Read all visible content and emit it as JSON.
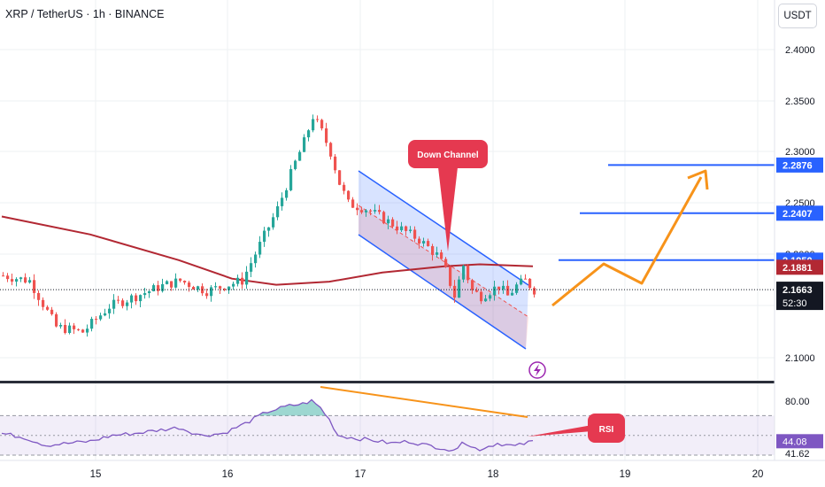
{
  "header": {
    "symbol_line": "XRP / TetherUS · 1h · BINANCE",
    "currency_button": "USDT"
  },
  "colors": {
    "up": "#26a69a",
    "down": "#ef5350",
    "ma": "#b22833",
    "channel": "#2962ff",
    "level": "#2962ff",
    "arrow": "#f7931a",
    "rsi": "#7e57c2",
    "callout": "#e53950",
    "grid": "#eef0f3"
  },
  "labels": {
    "down_channel": "Down Channel",
    "rsi": "RSI"
  },
  "price_axis": {
    "ticks": [
      "2.4000",
      "2.3500",
      "2.3000",
      "2.2500",
      "2.2000",
      "2.1500",
      "2.1000"
    ]
  },
  "rsi_axis": {
    "ticks": [
      "80.00",
      "41.62"
    ]
  },
  "time_axis": {
    "labels": [
      "15",
      "16",
      "17",
      "18",
      "19",
      "20"
    ]
  },
  "price_tags": [
    {
      "text": "2.2876",
      "price": 2.2876,
      "color": "#2962ff"
    },
    {
      "text": "2.2407",
      "price": 2.2407,
      "color": "#2962ff"
    },
    {
      "text": "2.1950",
      "price": 2.195,
      "color": "#2962ff"
    },
    {
      "text": "2.1881",
      "price": 2.1881,
      "color": "#b22833"
    }
  ],
  "last_price": {
    "text": "2.1663",
    "countdown": "52:30",
    "price": 2.1663
  },
  "rsi_tag": {
    "text": "44.08",
    "value": 44.08
  },
  "levels": [
    2.2876,
    2.2407,
    2.195
  ],
  "chart_data": {
    "type": "candlestick",
    "interval": "1h",
    "ylim": [
      2.09,
      2.41
    ],
    "x_tick_labels": [
      "15",
      "16",
      "17",
      "18",
      "19",
      "20"
    ],
    "approx_price_path": [
      [
        0,
        2.18
      ],
      [
        6,
        2.175
      ],
      [
        12,
        2.13
      ],
      [
        18,
        2.125
      ],
      [
        24,
        2.15
      ],
      [
        30,
        2.16
      ],
      [
        36,
        2.17
      ],
      [
        40,
        2.175
      ],
      [
        46,
        2.165
      ],
      [
        50,
        2.17
      ],
      [
        54,
        2.175
      ],
      [
        58,
        2.21
      ],
      [
        62,
        2.245
      ],
      [
        66,
        2.29
      ],
      [
        68,
        2.31
      ],
      [
        70,
        2.335
      ],
      [
        72,
        2.32
      ],
      [
        74,
        2.3
      ],
      [
        76,
        2.27
      ],
      [
        78,
        2.25
      ],
      [
        82,
        2.245
      ],
      [
        86,
        2.235
      ],
      [
        90,
        2.225
      ],
      [
        94,
        2.215
      ],
      [
        98,
        2.2
      ],
      [
        100,
        2.185
      ],
      [
        102,
        2.16
      ],
      [
        104,
        2.19
      ],
      [
        106,
        2.165
      ],
      [
        108,
        2.16
      ],
      [
        110,
        2.165
      ],
      [
        112,
        2.17
      ],
      [
        114,
        2.16
      ],
      [
        116,
        2.17
      ],
      [
        118,
        2.175
      ],
      [
        120,
        2.166
      ]
    ],
    "moving_average": [
      [
        0,
        2.2375
      ],
      [
        20,
        2.22
      ],
      [
        40,
        2.195
      ],
      [
        52,
        2.177
      ],
      [
        62,
        2.171
      ],
      [
        74,
        2.174
      ],
      [
        86,
        2.183
      ],
      [
        100,
        2.189
      ],
      [
        108,
        2.191
      ],
      [
        120,
        2.189
      ]
    ],
    "rsi": {
      "ylim": [
        30,
        100
      ],
      "levels": [
        70,
        50,
        30
      ],
      "values": [
        [
          0,
          52
        ],
        [
          5,
          48
        ],
        [
          10,
          40
        ],
        [
          15,
          42
        ],
        [
          20,
          44
        ],
        [
          25,
          50
        ],
        [
          30,
          52
        ],
        [
          35,
          55
        ],
        [
          40,
          58
        ],
        [
          45,
          50
        ],
        [
          50,
          52
        ],
        [
          55,
          62
        ],
        [
          60,
          74
        ],
        [
          65,
          80
        ],
        [
          68,
          82
        ],
        [
          70,
          85
        ],
        [
          72,
          78
        ],
        [
          74,
          66
        ],
        [
          76,
          50
        ],
        [
          80,
          47
        ],
        [
          84,
          45
        ],
        [
          88,
          42
        ],
        [
          92,
          44
        ],
        [
          96,
          40
        ],
        [
          100,
          37
        ],
        [
          102,
          33
        ],
        [
          104,
          45
        ],
        [
          106,
          38
        ],
        [
          108,
          36
        ],
        [
          112,
          42
        ],
        [
          116,
          39
        ],
        [
          120,
          44
        ]
      ]
    }
  }
}
